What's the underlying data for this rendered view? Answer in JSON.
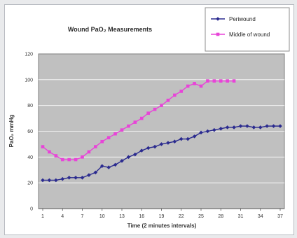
{
  "chart_data": {
    "type": "line",
    "title": "Wound PaO₂ Measurements",
    "xlabel": "Time (2 minutes intervals)",
    "ylabel": "PaO₂ mmHg",
    "ylim": [
      0,
      120
    ],
    "yticks": [
      0,
      20,
      40,
      60,
      80,
      100,
      120
    ],
    "xticks": [
      1,
      4,
      7,
      10,
      13,
      16,
      19,
      22,
      25,
      28,
      31,
      34,
      37
    ],
    "xlim": [
      1,
      37
    ],
    "grid": true,
    "plot_background": "#c0c0c0",
    "legend_position": "top-right",
    "series": [
      {
        "name": "Periwound",
        "color": "#2b2b8f",
        "x": [
          1,
          2,
          3,
          4,
          5,
          6,
          7,
          8,
          9,
          10,
          11,
          12,
          13,
          14,
          15,
          16,
          17,
          18,
          19,
          20,
          21,
          22,
          23,
          24,
          25,
          26,
          27,
          28,
          29,
          30,
          31,
          32,
          33,
          34,
          35,
          36,
          37
        ],
        "values": [
          22,
          22,
          22,
          23,
          24,
          24,
          24,
          26,
          28,
          33,
          32,
          34,
          37,
          40,
          42,
          45,
          47,
          48,
          50,
          51,
          52,
          54,
          54,
          56,
          59,
          60,
          61,
          62,
          63,
          63,
          64,
          64,
          63,
          63,
          64,
          64,
          64
        ]
      },
      {
        "name": "Middle of wound",
        "color": "#e844d8",
        "x": [
          1,
          2,
          3,
          4,
          5,
          6,
          7,
          8,
          9,
          10,
          11,
          12,
          13,
          14,
          15,
          16,
          17,
          18,
          19,
          20,
          21,
          22,
          23,
          24,
          25,
          26,
          27,
          28,
          29,
          30
        ],
        "values": [
          48,
          44,
          41,
          38,
          38,
          38,
          40,
          44,
          48,
          52,
          55,
          58,
          61,
          64,
          67,
          70,
          74,
          77,
          80,
          84,
          88,
          91,
          95,
          97,
          95,
          99,
          99,
          99,
          99,
          99
        ]
      }
    ]
  }
}
